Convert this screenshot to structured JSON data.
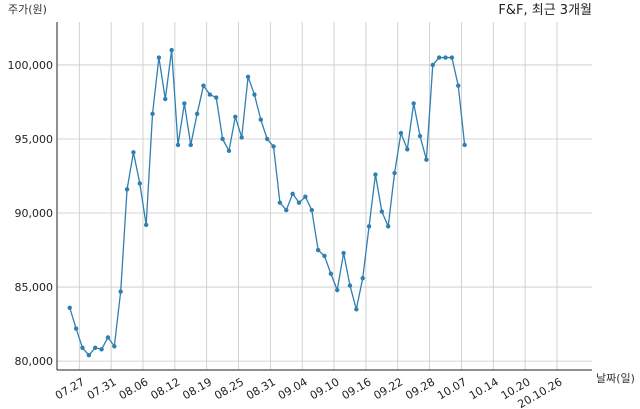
{
  "chart_data": {
    "type": "line",
    "title": "F&F, 최근 3개월",
    "ylabel": "주가(원)",
    "xlabel": "날짜(일)",
    "ylim": [
      79400,
      102900
    ],
    "yticks": [
      80000,
      85000,
      90000,
      95000,
      100000
    ],
    "ytick_labels": [
      "80,000",
      "85,000",
      "90,000",
      "95,000",
      "100,000"
    ],
    "xticks": [
      "07.27",
      "07.31",
      "08.06",
      "08.12",
      "08.19",
      "08.25",
      "08.31",
      "09.04",
      "09.10",
      "09.16",
      "09.22",
      "09.28",
      "10.07",
      "10.14",
      "10.20",
      "20.10.26"
    ],
    "xtick_positions": [
      2.5,
      7.5,
      12.5,
      17.5,
      22.5,
      27.5,
      32.5,
      37.5,
      42.5,
      47.5,
      52.5,
      57.5,
      62.5,
      67.5,
      72.5,
      77.5
    ],
    "xlim": [
      -1,
      83
    ],
    "grid": true,
    "color": "#2f7fb0",
    "series": [
      {
        "values": [
          83600,
          82200,
          80900,
          80400,
          80900,
          80800,
          81600,
          81000,
          84700,
          91600,
          94100,
          92000,
          89200,
          96700,
          100500,
          97700,
          101000,
          94600,
          97400,
          94600,
          96700,
          98600,
          98000,
          97800,
          95000,
          94200,
          96500,
          95100,
          99200,
          98000,
          96300,
          95000,
          94500,
          90700,
          90200,
          91300,
          90700,
          91100,
          90200,
          87500,
          87100,
          85900,
          84800,
          87300,
          85100,
          83500,
          85600,
          89100,
          92600,
          90100,
          89100,
          92700,
          95400,
          94300,
          97400,
          95200,
          93600,
          100000,
          100500,
          100500,
          100500,
          98600,
          94600
        ]
      }
    ]
  }
}
